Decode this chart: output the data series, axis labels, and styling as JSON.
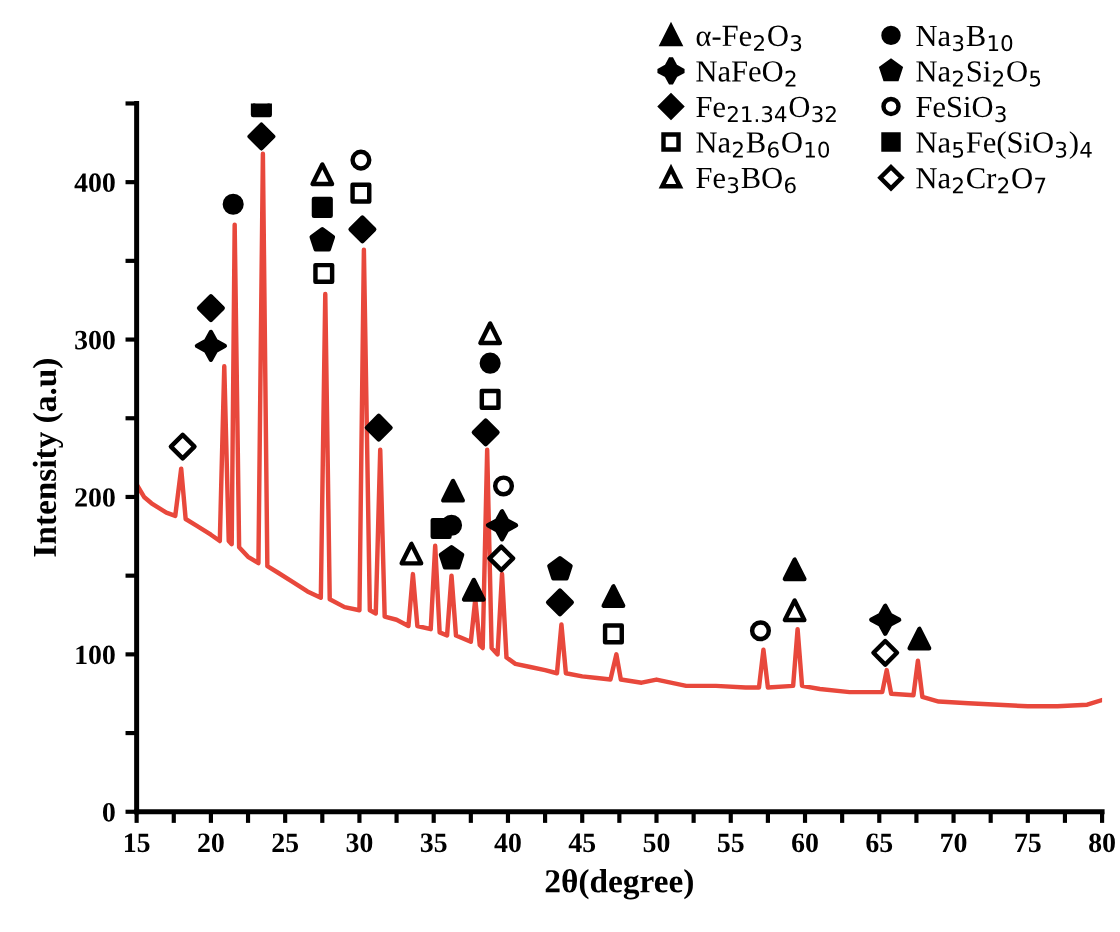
{
  "chart_data": {
    "type": "line",
    "xlabel": "2θ(degree)",
    "ylabel": "Intensity (a.u)",
    "xlim": [
      15,
      80
    ],
    "ylim": [
      0,
      450
    ],
    "xticks": [
      15,
      {
        "value": 17.5,
        "label": null
      },
      20,
      {
        "value": 22.5,
        "label": null
      },
      25,
      {
        "value": 27.5,
        "label": null
      },
      30,
      {
        "value": 32.5,
        "label": null
      },
      35,
      {
        "value": 37.5,
        "label": null
      },
      40,
      {
        "value": 42.5,
        "label": null
      },
      45,
      {
        "value": 47.5,
        "label": null
      },
      50,
      {
        "value": 52.5,
        "label": null
      },
      55,
      {
        "value": 57.5,
        "label": null
      },
      60,
      {
        "value": 62.5,
        "label": null
      },
      65,
      {
        "value": 67.5,
        "label": null
      },
      70,
      {
        "value": 72.5,
        "label": null
      },
      75,
      {
        "value": 77.5,
        "label": null
      },
      80
    ],
    "yticks": [
      0,
      {
        "value": 50,
        "label": null
      },
      100,
      {
        "value": 150,
        "label": null
      },
      200,
      {
        "value": 250,
        "label": null
      },
      300,
      {
        "value": 350,
        "label": null
      },
      400,
      {
        "value": 450,
        "label": null
      }
    ],
    "grid": false,
    "legend": "top right",
    "series": [
      {
        "color": "#e8483c",
        "x": [
          15,
          15.5,
          16,
          17,
          17.6,
          18.0,
          18.3,
          19,
          20,
          20.6,
          20.9,
          21.2,
          21.4,
          21.6,
          21.9,
          22.5,
          23.2,
          23.5,
          23.8,
          24.5,
          25.5,
          26.5,
          27.4,
          27.7,
          28.0,
          29,
          30.0,
          30.3,
          30.7,
          31.1,
          31.4,
          31.7,
          32.5,
          33.3,
          33.6,
          33.9,
          34.8,
          35.1,
          35.4,
          35.9,
          36.2,
          36.5,
          37.5,
          37.8,
          38.1,
          38.3,
          38.6,
          38.9,
          39.3,
          39.6,
          39.9,
          40.5,
          41.5,
          42.5,
          43.3,
          43.6,
          43.9,
          45,
          46,
          46.9,
          47.3,
          47.6,
          49,
          50,
          52,
          54,
          56,
          56.9,
          57.2,
          57.5,
          59.2,
          59.5,
          59.8,
          61,
          63,
          65.2,
          65.5,
          65.8,
          67.3,
          67.6,
          67.9,
          69,
          71,
          73,
          75,
          77,
          79,
          80
        ],
        "values": [
          208,
          200,
          196,
          190,
          188,
          218,
          186,
          182,
          176,
          172,
          283,
          172,
          170,
          373,
          168,
          162,
          158,
          418,
          156,
          152,
          146,
          140,
          136,
          329,
          135,
          130,
          128,
          357,
          128,
          126,
          230,
          124,
          122,
          118,
          151,
          118,
          116,
          169,
          114,
          112,
          150,
          112,
          108,
          135,
          106,
          104,
          230,
          104,
          100,
          151,
          98,
          94,
          92,
          90,
          88,
          119,
          88,
          86,
          85,
          84,
          100,
          84,
          82,
          84,
          80,
          80,
          79,
          79,
          103,
          79,
          80,
          116,
          80,
          78,
          76,
          76,
          90,
          75,
          74,
          96,
          73,
          70,
          69,
          68,
          67,
          67,
          68,
          71
        ]
      },
      {
        "type": "scatter",
        "name": "α-Fe$_{2}$O$_{3}$",
        "color": "#000000",
        "marker": "triangle",
        "x": [
          36.3,
          37.7,
          47.1,
          59.3,
          67.7
        ],
        "values": [
          204,
          141,
          137,
          154,
          110
        ]
      },
      {
        "type": "scatter",
        "name": "NaFeO$_{2}$",
        "color": "#000000",
        "marker": "star",
        "x": [
          20.0,
          39.6,
          65.4
        ],
        "values": [
          296,
          182,
          122
        ]
      },
      {
        "type": "scatter",
        "name": "Fe$_{21.34}$O$_{32}$",
        "color": "#000000",
        "marker": "diamond",
        "x": [
          20.0,
          23.4,
          30.2,
          31.3,
          38.5,
          43.5
        ],
        "values": [
          320,
          429,
          370,
          244,
          241,
          133
        ]
      },
      {
        "type": "scatter",
        "name": "Na$_{2}$B$_{6}$O$_{10}$",
        "color": "#ffffff",
        "marker": "square",
        "x": [
          27.6,
          30.1,
          38.8,
          47.1
        ],
        "values": [
          342,
          393,
          262,
          113
        ]
      },
      {
        "type": "scatter",
        "name": "Fe$_{3}$BO$_{6}$",
        "color": "#ffffff",
        "marker": "triangle",
        "x": [
          27.5,
          38.8,
          33.5,
          59.3
        ],
        "values": [
          405,
          304,
          164,
          128
        ]
      },
      {
        "type": "scatter",
        "name": "Na$_{3}$B$_{10}$",
        "color": "#000000",
        "marker": "circle",
        "x": [
          21.5,
          38.8,
          36.2
        ],
        "values": [
          386,
          285,
          182
        ]
      },
      {
        "type": "scatter",
        "name": "Na$_{2}$Si$_{2}$O$_{5}$",
        "color": "#000000",
        "x": [
          27.5,
          36.2,
          43.5
        ],
        "values": [
          363,
          161,
          154
        ]
      },
      {
        "type": "scatter",
        "name": "FeSiO$_{3}$",
        "color": "#ffffff",
        "marker": "circle",
        "x": [
          30.1,
          39.7,
          57.0
        ],
        "values": [
          414,
          207,
          115
        ]
      },
      {
        "type": "scatter",
        "name": "Na$_{5}$Fe(SiO$_{3}$)$_{4}$",
        "color": "#000000",
        "marker": "square",
        "x": [
          23.4,
          27.5,
          35.5
        ],
        "values": [
          448,
          384,
          180
        ]
      },
      {
        "type": "scatter",
        "name": "Na$_{2}$Cr$_{2}$O$_{7}$",
        "color": "#ffffff",
        "marker": "diamond",
        "x": [
          18.1,
          39.55,
          65.4
        ],
        "values": [
          232,
          161,
          101
        ]
      }
    ]
  }
}
